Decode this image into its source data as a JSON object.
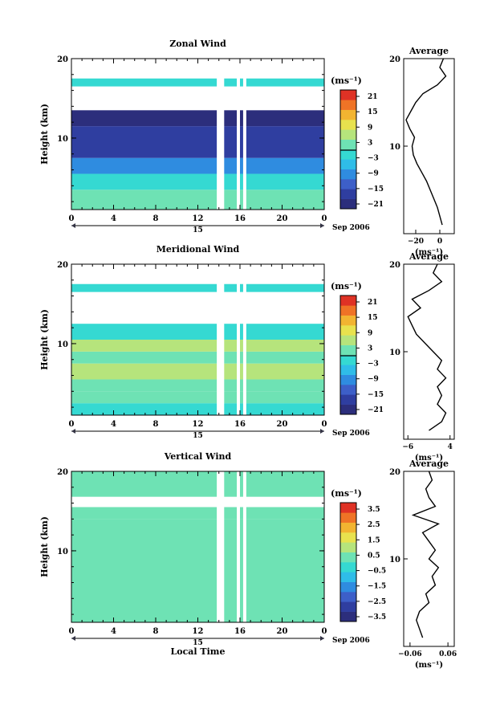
{
  "chart_data": [
    {
      "type": "heatmap",
      "title": "Zonal Wind",
      "ylabel": "Height (km)",
      "yticks": [
        "20",
        "10"
      ],
      "ylim": [
        1,
        20
      ],
      "xticks": [
        "0",
        "4",
        "8",
        "12",
        "16",
        "20",
        "0"
      ],
      "xlim": [
        0,
        24
      ],
      "day_label": "15",
      "date_label": "Sep 2006",
      "colorbar": {
        "unit_label": "(ms⁻¹)",
        "ticks": [
          "21",
          "15",
          "9",
          "3",
          "−3",
          "−9",
          "−15",
          "−21"
        ],
        "range": [
          -24,
          24
        ]
      },
      "data_gaps_hours": [
        [
          13.8,
          14.5
        ],
        [
          15.7,
          16.0
        ],
        [
          16.3,
          16.6
        ]
      ],
      "layers": [
        {
          "from_km": 1,
          "to_km": 3.5,
          "value": 3
        },
        {
          "from_km": 3.5,
          "to_km": 5.5,
          "value": -3
        },
        {
          "from_km": 5.5,
          "to_km": 7.5,
          "value": -12
        },
        {
          "from_km": 7.5,
          "to_km": 11.5,
          "value": -20
        },
        {
          "from_km": 11.5,
          "to_km": 13.5,
          "value": -22
        },
        {
          "from_km": 16.5,
          "to_km": 17.5,
          "value": -3
        }
      ],
      "average": {
        "title": "Average",
        "xlabel": "(ms⁻¹)",
        "xticks": [
          "−20",
          "0"
        ],
        "xlim": [
          -30,
          12
        ],
        "yticks": [
          "20",
          "10"
        ],
        "height_km": [
          1,
          2,
          3,
          4,
          5,
          6,
          7,
          8,
          9,
          10,
          11,
          12,
          13,
          14,
          15,
          16,
          17,
          18,
          19,
          20
        ],
        "values": [
          2,
          0,
          -2,
          -5,
          -8,
          -11,
          -15,
          -19,
          -22,
          -23,
          -21,
          -25,
          -28,
          -24,
          -20,
          -14,
          -2,
          5,
          0,
          3
        ]
      }
    },
    {
      "type": "heatmap",
      "title": "Meridional Wind",
      "ylabel": "Height (km)",
      "yticks": [
        "20",
        "10"
      ],
      "ylim": [
        1,
        20
      ],
      "xticks": [
        "0",
        "4",
        "8",
        "12",
        "16",
        "20",
        "0"
      ],
      "xlim": [
        0,
        24
      ],
      "day_label": "15",
      "date_label": "Sep 2006",
      "colorbar": {
        "unit_label": "(ms⁻¹)",
        "ticks": [
          "21",
          "15",
          "9",
          "3",
          "−3",
          "−9",
          "−15",
          "−21"
        ],
        "range": [
          -24,
          24
        ]
      },
      "data_gaps_hours": [
        [
          13.8,
          14.5
        ],
        [
          15.7,
          16.0
        ],
        [
          16.3,
          16.6
        ]
      ],
      "layers": [
        {
          "from_km": 1,
          "to_km": 2.5,
          "value": -3
        },
        {
          "from_km": 2.5,
          "to_km": 4,
          "value": 3
        },
        {
          "from_km": 4,
          "to_km": 5.5,
          "value": 0
        },
        {
          "from_km": 5.5,
          "to_km": 7.5,
          "value": 5
        },
        {
          "from_km": 7.5,
          "to_km": 9,
          "value": 1
        },
        {
          "from_km": 9,
          "to_km": 10.5,
          "value": 4
        },
        {
          "from_km": 10.5,
          "to_km": 12.5,
          "value": -4
        },
        {
          "from_km": 16.5,
          "to_km": 17.5,
          "value": -3
        }
      ],
      "average": {
        "title": "Average",
        "xlabel": "(ms⁻¹)",
        "xticks": [
          "−6",
          "4"
        ],
        "xlim": [
          -7,
          5
        ],
        "yticks": [
          "20",
          "10"
        ],
        "height_km": [
          1,
          2,
          3,
          4,
          5,
          6,
          7,
          8,
          9,
          10,
          11,
          12,
          13,
          14,
          15,
          16,
          17,
          18,
          19,
          20
        ],
        "values": [
          -1,
          2,
          3,
          1,
          2,
          1,
          3,
          1,
          2,
          0,
          -2,
          -4,
          -5,
          -6,
          -3,
          -5,
          -1,
          2,
          0,
          1
        ]
      }
    },
    {
      "type": "heatmap",
      "title": "Vertical Wind",
      "ylabel": "Height (km)",
      "yticks": [
        "20",
        "10"
      ],
      "ylim": [
        1,
        20
      ],
      "xticks": [
        "0",
        "4",
        "8",
        "12",
        "16",
        "20",
        "0"
      ],
      "xlim": [
        0,
        24
      ],
      "xlabel": "Local Time",
      "day_label": "15",
      "date_label": "Sep 2006",
      "colorbar": {
        "unit_label": "(ms⁻¹)",
        "ticks": [
          "3.5",
          "2.5",
          "1.5",
          "0.5",
          "−0.5",
          "−1.5",
          "−2.5",
          "−3.5"
        ],
        "range": [
          -4,
          4
        ]
      },
      "data_gaps_hours": [
        [
          13.8,
          14.5
        ],
        [
          15.7,
          16.0
        ],
        [
          16.3,
          16.6
        ]
      ],
      "layers": [
        {
          "from_km": 1,
          "to_km": 14,
          "value": 0
        },
        {
          "from_km": 14,
          "to_km": 15.5,
          "value": 0.2
        },
        {
          "from_km": 16.8,
          "to_km": 20,
          "value": 0
        }
      ],
      "average": {
        "title": "Average",
        "xlabel": "(ms⁻¹)",
        "xticks": [
          "−0.06",
          "0.06"
        ],
        "xlim": [
          -0.08,
          0.08
        ],
        "yticks": [
          "20",
          "10"
        ],
        "height_km": [
          1,
          2,
          3,
          4,
          5,
          6,
          7,
          8,
          9,
          10,
          11,
          12,
          13,
          14,
          15,
          16,
          17,
          18,
          19,
          20
        ],
        "values": [
          -0.02,
          -0.03,
          -0.04,
          -0.03,
          0.0,
          -0.01,
          0.02,
          0.01,
          0.03,
          0.0,
          0.02,
          0.0,
          -0.02,
          0.03,
          -0.05,
          0.02,
          0.0,
          -0.01,
          0.01,
          0.0
        ]
      }
    }
  ]
}
